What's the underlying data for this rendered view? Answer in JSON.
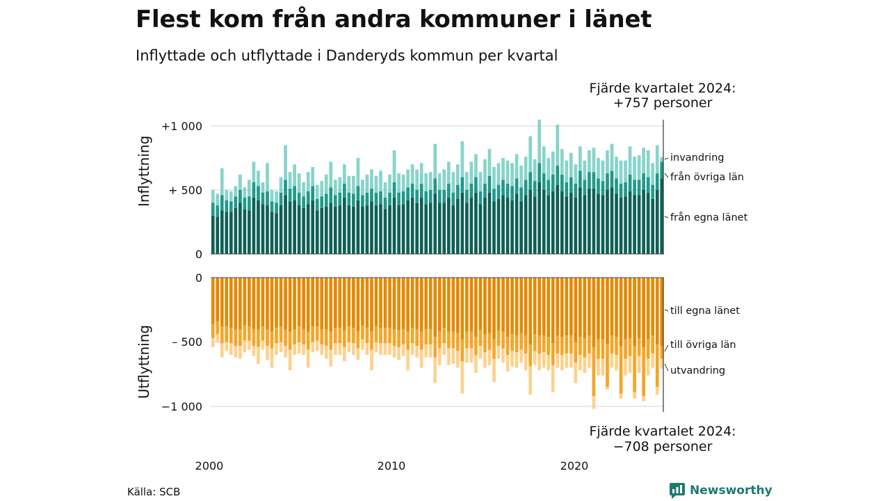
{
  "title": "Flest kom från andra kommuner i länet",
  "subtitle": "Inflyttade och utflyttade i Danderyds kommun per kvartal",
  "source": "Källa: SCB",
  "brand": "Newsworthy",
  "colors": {
    "in_own": "#0e5f55",
    "in_other": "#20998a",
    "in_immig": "#88d4ca",
    "out_own": "#e48a06",
    "out_other": "#f5a526",
    "out_emig": "#fdd28e",
    "brand": "#1d7a70"
  },
  "chart_data": {
    "type": "bar",
    "stacked": true,
    "x_start": "2000 Q1",
    "x_end": "2024 Q4",
    "x_ticks": [
      "2000",
      "2010",
      "2020"
    ],
    "upper_panel": {
      "ylabel": "Inflyttning",
      "yticks": [
        "+1 000",
        "+ 500",
        "0"
      ],
      "ylim": [
        0,
        1000
      ],
      "series_labels": [
        "invandring",
        "från övriga län",
        "från egna länet"
      ],
      "annotation": [
        "Fjärde kvartalet 2024:",
        "+757 personer"
      ],
      "total": [
        500,
        470,
        670,
        500,
        490,
        530,
        620,
        520,
        580,
        720,
        650,
        560,
        710,
        500,
        490,
        600,
        850,
        640,
        700,
        630,
        560,
        640,
        680,
        540,
        570,
        620,
        720,
        580,
        600,
        700,
        610,
        610,
        750,
        580,
        620,
        660,
        610,
        650,
        560,
        620,
        810,
        630,
        620,
        660,
        700,
        660,
        710,
        630,
        640,
        860,
        630,
        660,
        720,
        640,
        700,
        880,
        640,
        720,
        780,
        640,
        740,
        820,
        680,
        710,
        750,
        730,
        710,
        780,
        690,
        760,
        920,
        740,
        1050,
        840,
        750,
        800,
        1010,
        820,
        730,
        790,
        700,
        840,
        730,
        810,
        830,
        750,
        730,
        810,
        860,
        760,
        730,
        730,
        840,
        760,
        770,
        830,
        810,
        710,
        850,
        757
      ],
      "own": [
        300,
        290,
        340,
        330,
        330,
        360,
        400,
        350,
        340,
        440,
        420,
        390,
        380,
        330,
        320,
        380,
        460,
        410,
        420,
        380,
        360,
        390,
        420,
        340,
        360,
        370,
        400,
        370,
        380,
        440,
        380,
        370,
        420,
        370,
        380,
        410,
        380,
        390,
        350,
        380,
        440,
        380,
        390,
        420,
        440,
        400,
        440,
        390,
        400,
        470,
        400,
        400,
        440,
        380,
        430,
        480,
        400,
        440,
        480,
        390,
        440,
        480,
        410,
        430,
        460,
        440,
        420,
        470,
        410,
        460,
        500,
        450,
        560,
        500,
        460,
        490,
        540,
        490,
        450,
        480,
        440,
        520,
        460,
        510,
        510,
        470,
        460,
        500,
        520,
        470,
        440,
        450,
        490,
        460,
        460,
        500,
        480,
        430,
        500,
        590
      ],
      "other": [
        100,
        90,
        120,
        90,
        80,
        90,
        100,
        90,
        110,
        120,
        110,
        90,
        110,
        80,
        80,
        100,
        120,
        100,
        110,
        100,
        90,
        100,
        110,
        90,
        90,
        100,
        120,
        90,
        100,
        110,
        100,
        100,
        110,
        90,
        100,
        100,
        100,
        100,
        90,
        100,
        120,
        100,
        100,
        100,
        110,
        100,
        110,
        100,
        100,
        120,
        100,
        100,
        110,
        100,
        110,
        120,
        100,
        110,
        120,
        100,
        110,
        130,
        100,
        110,
        120,
        110,
        110,
        120,
        110,
        120,
        140,
        120,
        150,
        130,
        120,
        130,
        150,
        130,
        110,
        120,
        110,
        130,
        120,
        130,
        130,
        120,
        110,
        130,
        130,
        120,
        110,
        110,
        130,
        120,
        120,
        130,
        120,
        110,
        130,
        130
      ]
    },
    "lower_panel": {
      "ylabel": "Utflyttning",
      "yticks": [
        "0",
        "– 500",
        "−1 000"
      ],
      "ylim": [
        -1000,
        0
      ],
      "series_labels": [
        "till egna länet",
        "till övriga län",
        "utvandring"
      ],
      "annotation": [
        "Fjärde kvartalet 2024:",
        "−708 personer"
      ],
      "total": [
        -540,
        -500,
        -620,
        -570,
        -600,
        -620,
        -630,
        -580,
        -560,
        -610,
        -670,
        -560,
        -640,
        -700,
        -600,
        -580,
        -620,
        -720,
        -600,
        -590,
        -600,
        -700,
        -580,
        -570,
        -600,
        -630,
        -690,
        -600,
        -600,
        -650,
        -580,
        -600,
        -640,
        -560,
        -600,
        -720,
        -580,
        -600,
        -600,
        -600,
        -620,
        -640,
        -610,
        -720,
        -600,
        -620,
        -700,
        -620,
        -620,
        -820,
        -680,
        -600,
        -680,
        -670,
        -700,
        -900,
        -660,
        -660,
        -740,
        -630,
        -700,
        -680,
        -810,
        -630,
        -660,
        -730,
        -690,
        -700,
        -660,
        -720,
        -910,
        -680,
        -720,
        -700,
        -720,
        -890,
        -700,
        -720,
        -700,
        -700,
        -820,
        -720,
        -740,
        -700,
        -1020,
        -760,
        -760,
        -870,
        -700,
        -720,
        -940,
        -760,
        -740,
        -940,
        -740,
        -960,
        -760,
        -700,
        -910,
        -708
      ],
      "own": [
        -360,
        -340,
        -380,
        -380,
        -390,
        -400,
        -400,
        -370,
        -380,
        -400,
        -400,
        -380,
        -400,
        -420,
        -390,
        -380,
        -400,
        -420,
        -400,
        -380,
        -400,
        -420,
        -380,
        -380,
        -400,
        -400,
        -420,
        -390,
        -390,
        -410,
        -380,
        -390,
        -420,
        -370,
        -390,
        -420,
        -380,
        -390,
        -390,
        -390,
        -400,
        -410,
        -400,
        -420,
        -390,
        -400,
        -420,
        -400,
        -400,
        -460,
        -420,
        -390,
        -420,
        -420,
        -430,
        -480,
        -420,
        -420,
        -460,
        -410,
        -440,
        -430,
        -480,
        -410,
        -420,
        -460,
        -440,
        -450,
        -430,
        -450,
        -520,
        -440,
        -450,
        -450,
        -460,
        -510,
        -450,
        -460,
        -450,
        -450,
        -500,
        -460,
        -470,
        -450,
        -540,
        -480,
        -480,
        -520,
        -450,
        -460,
        -530,
        -480,
        -470,
        -530,
        -470,
        -540,
        -480,
        -450,
        -520,
        -530
      ],
      "other": [
        -110,
        -100,
        -130,
        -120,
        -120,
        -130,
        -130,
        -120,
        -110,
        -130,
        -140,
        -110,
        -130,
        -130,
        -120,
        -120,
        -130,
        -140,
        -120,
        -120,
        -120,
        -140,
        -120,
        -110,
        -120,
        -130,
        -140,
        -120,
        -120,
        -130,
        -120,
        -120,
        -130,
        -110,
        -120,
        -140,
        -120,
        -120,
        -120,
        -120,
        -130,
        -130,
        -120,
        -140,
        -120,
        -130,
        -140,
        -120,
        -120,
        -160,
        -130,
        -120,
        -130,
        -130,
        -140,
        -170,
        -130,
        -130,
        -140,
        -120,
        -140,
        -130,
        -150,
        -120,
        -130,
        -140,
        -130,
        -130,
        -130,
        -140,
        -170,
        -130,
        -140,
        -130,
        -140,
        -170,
        -140,
        -140,
        -140,
        -140,
        -160,
        -140,
        -150,
        -140,
        -380,
        -150,
        -150,
        -330,
        -140,
        -140,
        -370,
        -150,
        -140,
        -360,
        -140,
        -380,
        -150,
        -140,
        -330,
        -100
      ]
    }
  }
}
